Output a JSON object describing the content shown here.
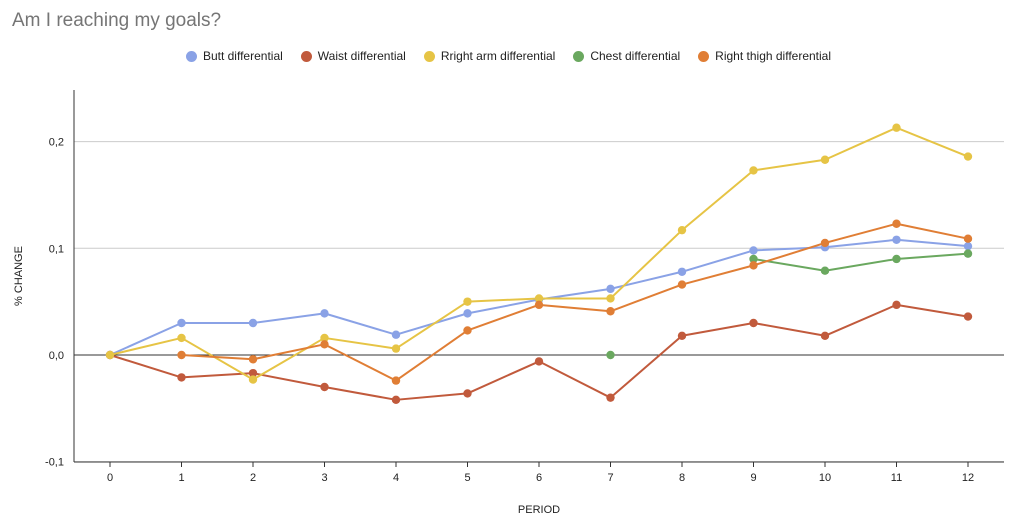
{
  "chart_data": {
    "type": "line",
    "title": "Am I reaching my goals?",
    "xlabel": "PERIOD",
    "ylabel": "% CHANGE",
    "categories": [
      "0",
      "1",
      "2",
      "3",
      "4",
      "5",
      "6",
      "7",
      "8",
      "9",
      "10",
      "11",
      "12"
    ],
    "ylim": [
      -0.1,
      0.25
    ],
    "yticks": [
      -0.1,
      0.0,
      0.1,
      0.2
    ],
    "ytick_labels": [
      "-0,1",
      "0,0",
      "0,1",
      "0,2"
    ],
    "legend_position": "top",
    "grid": true,
    "series": [
      {
        "name": "Butt differential",
        "color": "#8aa2e6",
        "values": [
          0,
          0.03,
          0.03,
          0.039,
          0.019,
          0.039,
          0.052,
          0.062,
          0.078,
          0.098,
          0.101,
          0.108,
          0.102
        ]
      },
      {
        "name": "Waist differential",
        "color": "#c15a3c",
        "values": [
          0,
          -0.021,
          -0.017,
          -0.03,
          -0.042,
          -0.036,
          -0.006,
          -0.04,
          0.018,
          0.03,
          0.018,
          0.047,
          0.036
        ]
      },
      {
        "name": "Rright arm differential",
        "color": "#e6c445",
        "values": [
          0,
          0.016,
          -0.023,
          0.016,
          0.006,
          0.05,
          0.053,
          0.053,
          0.117,
          0.173,
          0.183,
          0.213,
          0.186
        ]
      },
      {
        "name": "Chest differential",
        "color": "#6aa85f",
        "values": [
          null,
          null,
          null,
          null,
          null,
          null,
          null,
          0,
          null,
          0.09,
          0.079,
          0.09,
          0.095
        ]
      },
      {
        "name": "Right thigh differential",
        "color": "#e07e35",
        "values": [
          null,
          0,
          -0.004,
          0.01,
          -0.024,
          0.023,
          0.047,
          0.041,
          0.066,
          0.084,
          0.105,
          0.123,
          0.109
        ]
      }
    ]
  }
}
